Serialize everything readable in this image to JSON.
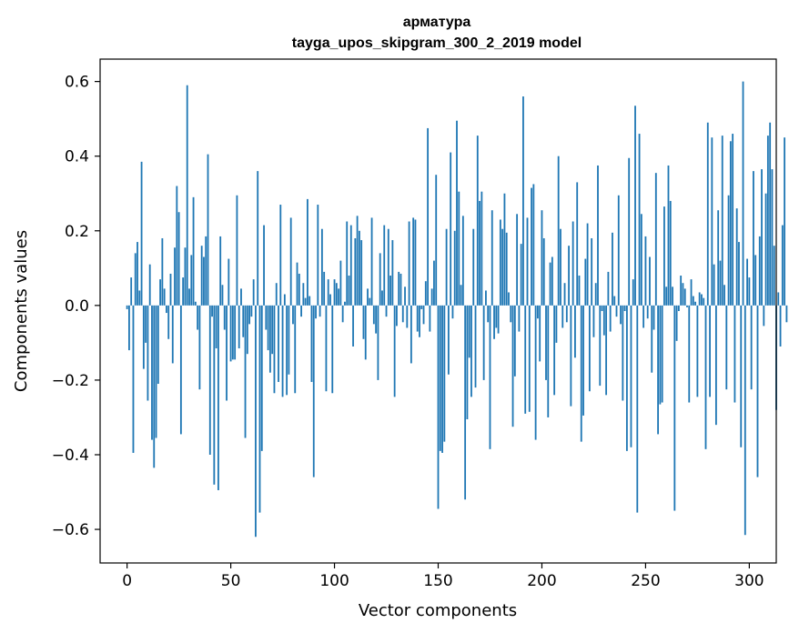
{
  "chart_data": {
    "type": "bar",
    "title": "арматура",
    "subtitle": "tayga_upos_skipgram_300_2_2019 model",
    "xlabel": "Vector components",
    "ylabel": "Components values",
    "xlim": [
      -13,
      313
    ],
    "ylim": [
      -0.69,
      0.66
    ],
    "xticks": [
      0,
      50,
      100,
      150,
      200,
      250,
      300
    ],
    "yticks": [
      -0.6,
      -0.4,
      -0.2,
      0.0,
      0.2,
      0.4,
      0.6
    ],
    "xtick_labels": [
      "0",
      "50",
      "100",
      "150",
      "200",
      "250",
      "300"
    ],
    "ytick_labels": [
      "−0.6",
      "−0.4",
      "−0.2",
      "0.0",
      "0.2",
      "0.4",
      "0.6"
    ],
    "bar_color": "#1f77b4",
    "grid": false,
    "values": [
      -0.01,
      -0.12,
      0.075,
      -0.395,
      0.14,
      0.17,
      0.04,
      0.385,
      -0.17,
      -0.1,
      -0.255,
      0.11,
      -0.36,
      -0.435,
      -0.355,
      -0.21,
      0.07,
      0.18,
      0.045,
      -0.02,
      -0.09,
      0.085,
      -0.155,
      0.155,
      0.32,
      0.25,
      -0.345,
      0.075,
      0.155,
      0.59,
      0.045,
      0.135,
      0.29,
      0.01,
      -0.065,
      -0.225,
      0.16,
      0.13,
      0.185,
      0.405,
      -0.4,
      -0.03,
      -0.48,
      -0.115,
      -0.495,
      0.185,
      0.055,
      -0.065,
      -0.255,
      0.125,
      -0.15,
      -0.145,
      -0.145,
      0.295,
      -0.115,
      0.045,
      -0.085,
      -0.355,
      -0.13,
      -0.05,
      -0.03,
      0.07,
      -0.62,
      0.36,
      -0.555,
      -0.39,
      0.215,
      -0.065,
      -0.12,
      -0.18,
      -0.13,
      -0.235,
      0.06,
      -0.205,
      0.27,
      -0.245,
      0.03,
      -0.24,
      -0.185,
      0.235,
      -0.05,
      -0.235,
      0.115,
      0.085,
      -0.03,
      0.06,
      0.02,
      0.285,
      0.025,
      -0.205,
      -0.46,
      -0.035,
      0.27,
      -0.03,
      0.205,
      0.09,
      -0.23,
      0.07,
      0.03,
      -0.235,
      0.07,
      0.06,
      0.045,
      0.12,
      -0.045,
      0.01,
      0.225,
      0.08,
      0.215,
      -0.11,
      0.18,
      0.24,
      0.2,
      0.175,
      -0.09,
      -0.145,
      0.045,
      0.02,
      0.235,
      -0.05,
      -0.075,
      -0.2,
      0.14,
      0.04,
      0.215,
      -0.03,
      0.205,
      0.08,
      0.175,
      -0.245,
      -0.055,
      0.09,
      0.085,
      -0.045,
      0.05,
      -0.06,
      0.225,
      -0.155,
      0.235,
      0.23,
      -0.07,
      -0.085,
      -0.01,
      -0.05,
      0.065,
      0.475,
      -0.07,
      0.045,
      0.12,
      0.35,
      -0.545,
      -0.39,
      -0.395,
      -0.365,
      0.205,
      -0.185,
      0.41,
      -0.035,
      0.2,
      0.495,
      0.305,
      0.055,
      0.24,
      -0.52,
      -0.305,
      -0.14,
      -0.245,
      0.205,
      -0.22,
      0.455,
      0.28,
      0.305,
      -0.2,
      0.04,
      -0.045,
      -0.385,
      0.255,
      -0.09,
      -0.06,
      -0.075,
      0.23,
      0.205,
      0.3,
      0.195,
      0.035,
      -0.045,
      -0.325,
      -0.19,
      0.245,
      -0.07,
      0.165,
      0.56,
      -0.29,
      0.235,
      -0.285,
      0.315,
      0.325,
      -0.36,
      -0.035,
      -0.15,
      0.255,
      0.18,
      -0.2,
      -0.3,
      0.115,
      0.13,
      -0.24,
      -0.1,
      0.4,
      0.205,
      -0.06,
      0.06,
      -0.045,
      0.16,
      -0.27,
      0.225,
      -0.14,
      0.33,
      0.08,
      -0.365,
      -0.295,
      0.125,
      0.22,
      -0.23,
      0.18,
      -0.085,
      0.06,
      0.375,
      -0.215,
      -0.015,
      -0.08,
      -0.24,
      0.09,
      -0.07,
      0.195,
      0.025,
      -0.03,
      0.295,
      -0.05,
      -0.255,
      -0.015,
      -0.39,
      0.395,
      -0.38,
      0.07,
      0.535,
      -0.555,
      0.46,
      0.245,
      -0.06,
      0.185,
      -0.035,
      0.13,
      -0.18,
      -0.065,
      0.355,
      -0.345,
      -0.265,
      -0.26,
      0.265,
      0.05,
      0.375,
      0.28,
      0.05,
      -0.55,
      -0.095,
      -0.015,
      0.08,
      0.06,
      0.045,
      -0.005,
      -0.26,
      0.07,
      0.025,
      0.01,
      -0.245,
      0.035,
      0.03,
      0.02,
      -0.385,
      0.49,
      -0.245,
      0.45,
      0.11,
      -0.32,
      0.255,
      0.12,
      0.455,
      0.055,
      -0.225,
      0.295,
      0.44,
      0.46,
      -0.26,
      0.26,
      0.17,
      -0.38,
      0.6,
      -0.615,
      0.125,
      0.075,
      -0.225,
      0.36,
      0.135,
      -0.46,
      0.185,
      0.365,
      -0.055,
      0.3,
      0.455,
      0.49,
      0.365,
      0.16,
      -0.28,
      0.035,
      -0.11,
      0.215,
      0.45,
      -0.045
    ]
  }
}
